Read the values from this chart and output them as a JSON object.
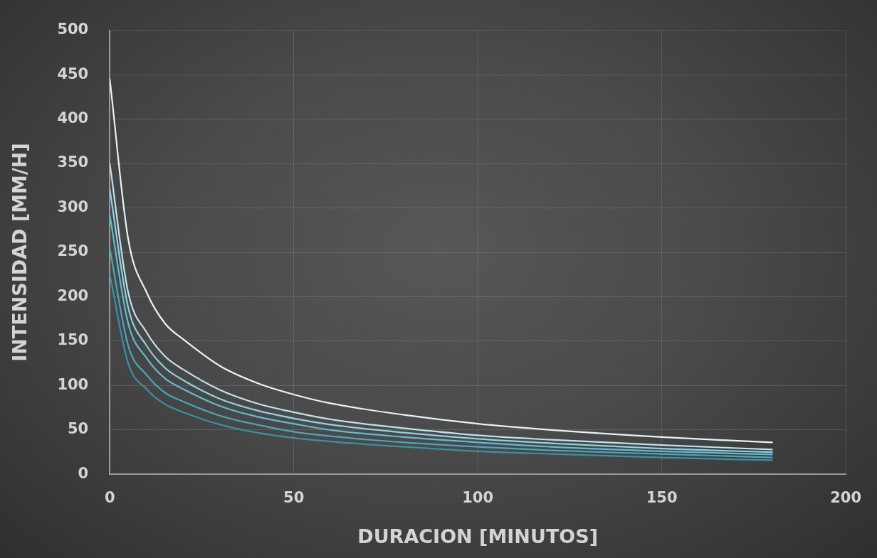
{
  "chart_data": {
    "type": "line",
    "xlabel": "DURACION [MINUTOS]",
    "ylabel": "INTENSIDAD [MM/H]",
    "x": [
      0,
      5,
      10,
      15,
      20,
      30,
      40,
      50,
      60,
      80,
      100,
      120,
      150,
      180
    ],
    "series": [
      {
        "color": "#e6f3f7",
        "values": [
          445,
          265,
          205,
          170,
          152,
          122,
          103,
          90,
          80,
          67,
          57,
          50,
          42,
          36
        ]
      },
      {
        "color": "#bfe2ec",
        "values": [
          350,
          205,
          160,
          133,
          118,
          95,
          80,
          70,
          62,
          52,
          44,
          39,
          33,
          28
        ]
      },
      {
        "color": "#8fd2e4",
        "values": [
          321,
          188,
          145,
          120,
          106,
          85,
          72,
          63,
          56,
          47,
          40,
          35,
          29,
          25
        ]
      },
      {
        "color": "#5fbcd3",
        "values": [
          292,
          170,
          131,
          108,
          96,
          77,
          65,
          57,
          50,
          42,
          36,
          31,
          26,
          22.5
        ]
      },
      {
        "color": "#4ba6bd",
        "values": [
          254,
          145,
          112,
          92,
          82,
          66,
          56,
          48,
          43,
          36,
          31,
          27,
          23,
          19
        ]
      },
      {
        "color": "#3b90a6",
        "values": [
          225,
          125,
          96,
          79,
          70,
          56,
          47,
          41,
          37,
          31,
          26,
          23,
          19,
          16
        ]
      }
    ],
    "xlim": [
      0,
      200
    ],
    "xticks": [
      0,
      50,
      100,
      150,
      200
    ],
    "ylim": [
      0,
      500
    ],
    "yticks": [
      0,
      50,
      100,
      150,
      200,
      250,
      300,
      350,
      400,
      450,
      500
    ],
    "grid": true,
    "legend": false,
    "marker": "none",
    "line_style": "solid"
  }
}
